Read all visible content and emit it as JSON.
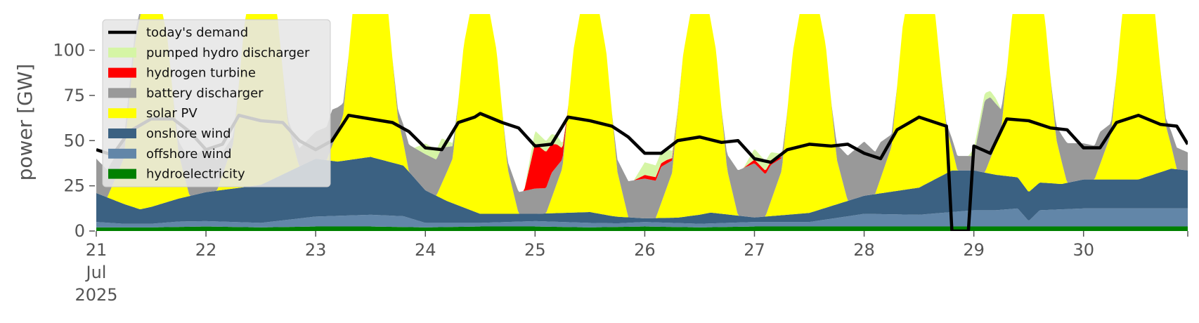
{
  "chart_data": {
    "type": "area",
    "ylabel": "power [GW]",
    "ylim": [
      0,
      120
    ],
    "xlim": [
      21.0,
      30.95
    ],
    "grid": false,
    "legend_placement": "top-left",
    "y_ticks": [
      0,
      25,
      50,
      75,
      100
    ],
    "x_ticks": [
      {
        "x": 21,
        "lines": [
          "21",
          "Jul",
          "2025"
        ]
      },
      {
        "x": 22,
        "lines": [
          "22"
        ]
      },
      {
        "x": 23,
        "lines": [
          "23"
        ]
      },
      {
        "x": 24,
        "lines": [
          "24"
        ]
      },
      {
        "x": 25,
        "lines": [
          "25"
        ]
      },
      {
        "x": 26,
        "lines": [
          "26"
        ]
      },
      {
        "x": 27,
        "lines": [
          "27"
        ]
      },
      {
        "x": 28,
        "lines": [
          "28"
        ]
      },
      {
        "x": 29,
        "lines": [
          "29"
        ]
      },
      {
        "x": 30,
        "lines": [
          "30"
        ]
      }
    ],
    "legend": [
      {
        "label": "today's demand",
        "color": "#000000",
        "kind": "line"
      },
      {
        "label": "pumped hydro discharger",
        "color": "#d5f5a5",
        "kind": "patch"
      },
      {
        "label": "hydrogen turbine",
        "color": "#ff0000",
        "kind": "patch"
      },
      {
        "label": "battery discharger",
        "color": "#999999",
        "kind": "patch"
      },
      {
        "label": "solar PV",
        "color": "#ffff00",
        "kind": "patch"
      },
      {
        "label": "onshore wind",
        "color": "#3b6182",
        "kind": "patch"
      },
      {
        "label": "offshore wind",
        "color": "#6286a8",
        "kind": "patch"
      },
      {
        "label": "hydroelectricity",
        "color": "#008000",
        "kind": "patch"
      }
    ],
    "series": [
      {
        "name": "hydroelectricity",
        "color": "#008000",
        "x": [
          21.0,
          21.5,
          22.0,
          22.5,
          23.0,
          23.5,
          24.0,
          24.5,
          25.0,
          25.5,
          26.0,
          26.5,
          27.0,
          27.5,
          28.0,
          28.5,
          29.0,
          29.5,
          30.0,
          30.5,
          30.95
        ],
        "values": [
          2,
          2,
          2.5,
          2,
          2.5,
          2.5,
          2,
          2.5,
          2.5,
          2,
          2.5,
          2,
          2.5,
          2.5,
          2.5,
          2.5,
          2.5,
          2.5,
          2.5,
          2.5,
          2.5
        ]
      },
      {
        "name": "offshore wind",
        "color": "#6286a8",
        "x": [
          21.0,
          21.25,
          21.5,
          21.75,
          22.0,
          22.5,
          23.0,
          23.5,
          23.8,
          24.0,
          24.5,
          25.0,
          25.5,
          25.75,
          26.0,
          26.5,
          27.0,
          27.5,
          28.0,
          28.5,
          29.0,
          29.2,
          29.4,
          29.5,
          29.6,
          30.0,
          30.5,
          30.95
        ],
        "values": [
          3,
          2,
          2,
          3,
          3,
          2.5,
          5.5,
          6.5,
          6,
          2.5,
          2,
          3,
          2.5,
          2,
          2.5,
          2,
          2.5,
          2.5,
          7,
          6.5,
          9,
          9,
          10,
          3,
          9,
          10,
          10,
          10
        ]
      },
      {
        "name": "onshore wind",
        "color": "#3b6182",
        "x": [
          21.0,
          21.2,
          21.4,
          21.7,
          22.0,
          22.5,
          23.0,
          23.2,
          23.5,
          23.8,
          24.0,
          24.2,
          24.5,
          25.0,
          25.5,
          25.7,
          26.0,
          26.3,
          26.6,
          27.0,
          27.5,
          28.0,
          28.5,
          28.8,
          29.0,
          29.5,
          29.8,
          30.0,
          30.3,
          30.5,
          30.8,
          30.95
        ],
        "values": [
          16,
          12,
          8,
          12,
          16,
          21,
          32,
          30,
          32,
          28,
          18,
          12,
          5,
          4,
          6,
          4,
          2,
          3,
          6,
          2.5,
          5,
          10,
          15,
          23,
          22,
          16,
          14,
          16,
          16,
          16,
          22,
          21
        ]
      },
      {
        "name": "solar PV",
        "color": "#ffff00",
        "x": [
          21.0,
          21.1,
          21.25,
          21.35,
          21.5,
          21.65,
          21.75,
          21.85,
          22.0,
          22.1,
          22.25,
          22.35,
          22.5,
          22.65,
          22.75,
          22.85,
          23.0,
          23.1,
          23.25,
          23.35,
          23.5,
          23.65,
          23.75,
          23.85,
          24.0,
          24.1,
          24.25,
          24.35,
          24.5,
          24.65,
          24.75,
          24.85,
          25.0,
          25.1,
          25.25,
          25.35,
          25.5,
          25.65,
          25.75,
          25.85,
          26.0,
          26.1,
          26.25,
          26.35,
          26.5,
          26.65,
          26.75,
          26.85,
          27.0,
          27.1,
          27.25,
          27.35,
          27.5,
          27.65,
          27.75,
          27.85,
          28.0,
          28.1,
          28.25,
          28.35,
          28.5,
          28.65,
          28.75,
          28.85,
          29.0,
          29.1,
          29.25,
          29.35,
          29.5,
          29.65,
          29.75,
          29.85,
          30.0,
          30.1,
          30.25,
          30.35,
          30.5,
          30.65,
          30.75,
          30.85,
          30.95
        ],
        "values": [
          0,
          0,
          25,
          90,
          140,
          90,
          25,
          0,
          0,
          0,
          25,
          90,
          140,
          90,
          25,
          0,
          0,
          0,
          25,
          90,
          140,
          90,
          25,
          0,
          0,
          0,
          25,
          90,
          140,
          90,
          25,
          0,
          0,
          0,
          25,
          90,
          140,
          90,
          25,
          0,
          0,
          0,
          25,
          90,
          140,
          90,
          25,
          0,
          0,
          0,
          25,
          90,
          140,
          90,
          25,
          0,
          0,
          0,
          25,
          90,
          140,
          90,
          25,
          0,
          0,
          0,
          25,
          90,
          140,
          90,
          25,
          0,
          0,
          0,
          25,
          90,
          140,
          90,
          25,
          0,
          0
        ]
      },
      {
        "name": "battery discharger",
        "color": "#999999",
        "x": [
          21.0,
          21.5,
          21.7,
          21.85,
          22.0,
          22.3,
          22.5,
          22.7,
          22.85,
          23.0,
          23.15,
          23.3,
          23.7,
          23.85,
          24.0,
          24.15,
          24.3,
          24.7,
          24.85,
          25.0,
          25.15,
          25.3,
          25.7,
          25.85,
          26.0,
          26.15,
          26.3,
          26.7,
          26.85,
          27.0,
          27.15,
          27.3,
          27.7,
          27.85,
          28.0,
          28.15,
          28.3,
          28.7,
          28.85,
          29.0,
          29.1,
          29.15,
          29.3,
          29.7,
          29.85,
          30.0,
          30.15,
          30.3,
          30.7,
          30.85,
          30.95
        ],
        "values": [
          19,
          0,
          0,
          20,
          25,
          0,
          0,
          0,
          10,
          15,
          20,
          0,
          0,
          15,
          20,
          20,
          0,
          0,
          12,
          14,
          14,
          0,
          0,
          20,
          22,
          20,
          0,
          0,
          25,
          30,
          20,
          0,
          0,
          25,
          30,
          20,
          0,
          0,
          8,
          8,
          40,
          34,
          0,
          0,
          22,
          20,
          18,
          0,
          0,
          12,
          10
        ]
      },
      {
        "name": "hydrogen turbine",
        "color": "#ff0000",
        "x": [
          21.0,
          23.9,
          24.0,
          24.15,
          24.3,
          24.9,
          25.0,
          25.1,
          25.2,
          25.3,
          25.9,
          26.0,
          26.2,
          26.35,
          26.9,
          27.0,
          27.15,
          27.3,
          30.95
        ],
        "values": [
          0,
          0,
          0,
          0,
          0,
          0,
          25,
          20,
          12,
          0,
          0,
          2,
          2,
          0,
          0,
          2,
          2,
          0,
          0
        ]
      },
      {
        "name": "pumped hydro discharger",
        "color": "#d5f5a5",
        "x": [
          21.0,
          23.9,
          24.0,
          24.15,
          24.3,
          24.9,
          25.0,
          25.1,
          25.2,
          25.3,
          25.9,
          26.0,
          26.2,
          26.35,
          26.9,
          27.0,
          27.15,
          27.3,
          28.95,
          29.0,
          29.1,
          29.2,
          29.25,
          30.95
        ],
        "values": [
          0,
          0,
          6,
          5,
          0,
          0,
          7,
          6,
          5,
          0,
          0,
          7,
          6,
          0,
          0,
          6,
          5,
          0,
          0,
          4,
          4,
          3,
          0,
          0
        ]
      }
    ],
    "demand": {
      "name": "today's demand",
      "color": "#000000",
      "x": [
        21.0,
        21.15,
        21.3,
        21.5,
        21.7,
        21.85,
        22.0,
        22.15,
        22.3,
        22.5,
        22.7,
        22.85,
        23.0,
        23.15,
        23.3,
        23.5,
        23.7,
        23.85,
        24.0,
        24.15,
        24.3,
        24.45,
        24.5,
        24.7,
        24.85,
        25.0,
        25.15,
        25.3,
        25.5,
        25.7,
        25.85,
        26.0,
        26.15,
        26.3,
        26.5,
        26.7,
        26.85,
        27.0,
        27.15,
        27.3,
        27.5,
        27.7,
        27.85,
        28.0,
        28.15,
        28.3,
        28.5,
        28.7,
        28.75,
        28.8,
        28.95,
        29.0,
        29.15,
        29.3,
        29.5,
        29.7,
        29.85,
        30.0,
        30.15,
        30.3,
        30.5,
        30.7,
        30.85,
        30.95
      ],
      "values": [
        45,
        42,
        55,
        62,
        62,
        55,
        45,
        48,
        64,
        61,
        60,
        50,
        45,
        50,
        64,
        62,
        60,
        55,
        46,
        45,
        60,
        63,
        65,
        60,
        57,
        47,
        48,
        63,
        61,
        58,
        52,
        43,
        43,
        50,
        52,
        49,
        50,
        40,
        38,
        45,
        48,
        47,
        48,
        43,
        40,
        56,
        63,
        59,
        58,
        0,
        0,
        47,
        43,
        62,
        61,
        57,
        56,
        46,
        46,
        60,
        64,
        59,
        58,
        48
      ]
    }
  }
}
